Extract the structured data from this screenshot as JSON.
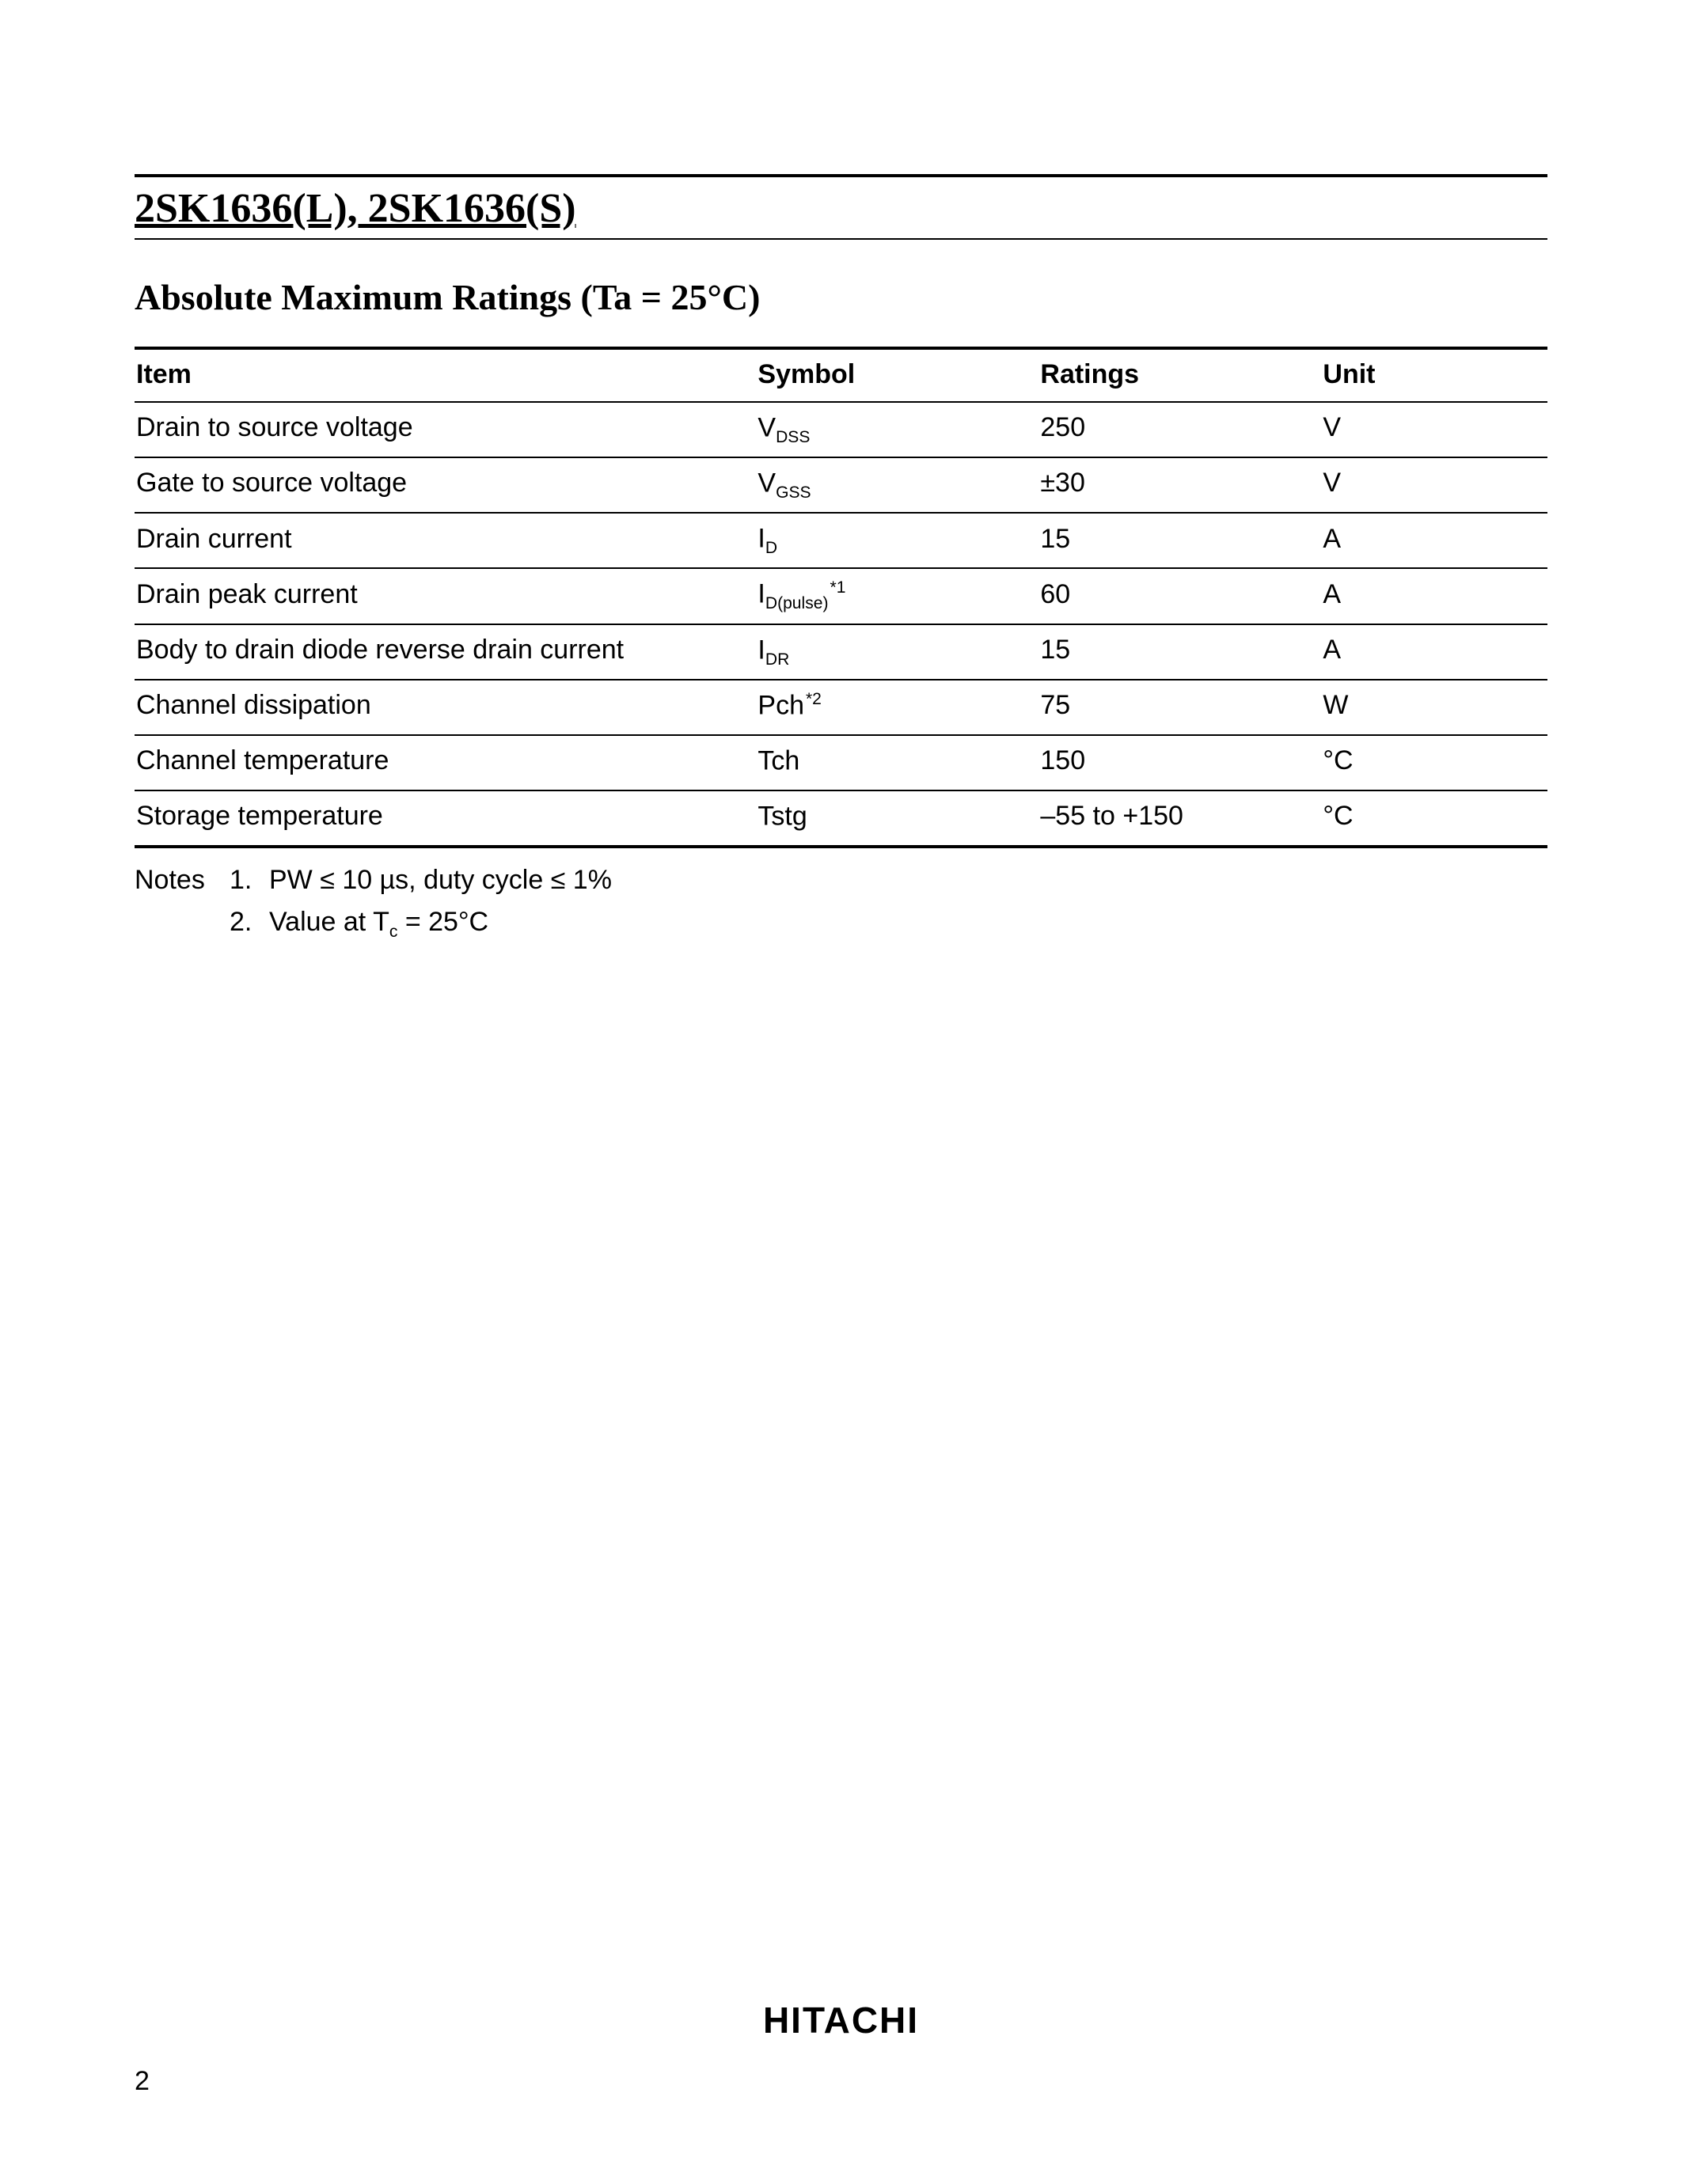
{
  "header": {
    "part_title": "2SK1636(L), 2SK1636(S)"
  },
  "section": {
    "heading_bold": "Absolute Maximum Ratings",
    "heading_cond": " (Ta = 25°C)"
  },
  "table": {
    "columns": [
      "Item",
      "Symbol",
      "Ratings",
      "Unit"
    ],
    "rows": [
      {
        "item": "Drain to source voltage",
        "symbol_main": "V",
        "symbol_sub": "DSS",
        "symbol_sup": "",
        "ratings": "250",
        "unit": "V"
      },
      {
        "item": "Gate to source voltage",
        "symbol_main": "V",
        "symbol_sub": "GSS",
        "symbol_sup": "",
        "ratings": "±30",
        "unit": "V"
      },
      {
        "item": "Drain current",
        "symbol_main": "I",
        "symbol_sub": "D",
        "symbol_sup": "",
        "ratings": "15",
        "unit": "A"
      },
      {
        "item": "Drain peak current",
        "symbol_main": "I",
        "symbol_sub": "D(pulse)",
        "symbol_sup": "*1",
        "ratings": "60",
        "unit": "A"
      },
      {
        "item": "Body to drain diode reverse drain current",
        "symbol_main": "I",
        "symbol_sub": "DR",
        "symbol_sup": "",
        "ratings": "15",
        "unit": "A"
      },
      {
        "item": "Channel dissipation",
        "symbol_main": "Pch",
        "symbol_sub": "",
        "symbol_sup": "*2",
        "ratings": "75",
        "unit": "W"
      },
      {
        "item": "Channel temperature",
        "symbol_main": "Tch",
        "symbol_sub": "",
        "symbol_sup": "",
        "ratings": "150",
        "unit": "°C"
      },
      {
        "item": "Storage temperature",
        "symbol_main": "Tstg",
        "symbol_sub": "",
        "symbol_sup": "",
        "ratings": "–55 to +150",
        "unit": "°C"
      }
    ]
  },
  "notes": {
    "label": "Notes",
    "items": [
      {
        "num": "1.",
        "text_pre": "PW ≤ 10 µs, duty cycle ≤ 1%",
        "has_sub": false
      },
      {
        "num": "2.",
        "text_pre": "Value at T",
        "sub": "c",
        "text_post": " =  25°C",
        "has_sub": true
      }
    ]
  },
  "footer": {
    "brand": "HITACHI",
    "page_number": "2"
  }
}
